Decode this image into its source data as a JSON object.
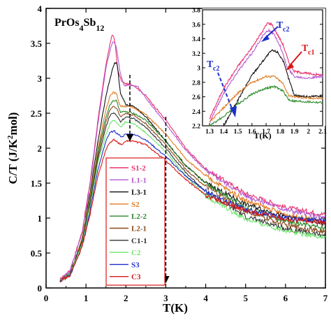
{
  "chart_data": {
    "type": "line",
    "title": "PrOs4Sb12",
    "xlabel": "T(K)",
    "ylabel": "C/T (J/K2mol)",
    "xlim": [
      0,
      7
    ],
    "ylim": [
      0,
      4
    ],
    "xticks": [
      "0",
      "1",
      "2",
      "3",
      "4",
      "5",
      "6",
      "7"
    ],
    "yticks": [
      "0",
      "0.5",
      "1",
      "1.5",
      "2",
      "2.5",
      "3",
      "3.5",
      "4"
    ],
    "legend_position": "inside lower middle",
    "series": [
      {
        "name": "S1-2",
        "color": "#e8306a",
        "x": [
          0.35,
          0.6,
          0.9,
          1.1,
          1.3,
          1.5,
          1.65,
          1.68,
          1.73,
          1.8,
          1.9,
          2.0,
          2.2,
          2.5,
          3.0,
          3.5,
          4.0,
          5.0,
          6.0,
          7.0
        ],
        "y": [
          0.12,
          0.25,
          0.8,
          1.5,
          2.4,
          3.2,
          3.62,
          3.62,
          3.5,
          3.1,
          2.95,
          2.92,
          2.9,
          2.75,
          2.4,
          2.0,
          1.7,
          1.35,
          1.15,
          1.05
        ]
      },
      {
        "name": "L1-1",
        "color": "#b45ad2",
        "x": [
          0.35,
          0.6,
          0.9,
          1.1,
          1.3,
          1.5,
          1.65,
          1.7,
          1.76,
          1.85,
          1.95,
          2.1,
          2.3,
          2.5,
          3.0,
          3.5,
          4.0,
          5.0,
          6.0,
          7.0
        ],
        "y": [
          0.12,
          0.25,
          0.78,
          1.45,
          2.35,
          3.15,
          3.5,
          3.52,
          3.45,
          3.1,
          2.9,
          2.9,
          2.88,
          2.72,
          2.35,
          1.97,
          1.68,
          1.32,
          1.12,
          1.0
        ]
      },
      {
        "name": "L3-1",
        "color": "#111111",
        "x": [
          0.35,
          0.6,
          0.9,
          1.1,
          1.3,
          1.5,
          1.65,
          1.72,
          1.78,
          1.86,
          2.0,
          2.2,
          2.5,
          3.0,
          3.5,
          4.0,
          5.0,
          6.0,
          7.0
        ],
        "y": [
          0.1,
          0.2,
          0.7,
          1.35,
          2.1,
          2.75,
          3.1,
          3.22,
          3.22,
          2.8,
          2.62,
          2.6,
          2.45,
          2.1,
          1.75,
          1.5,
          1.2,
          1.02,
          0.92
        ]
      },
      {
        "name": "S2",
        "color": "#e07a22",
        "x": [
          0.35,
          0.6,
          0.9,
          1.1,
          1.3,
          1.5,
          1.6,
          1.68,
          1.76,
          1.86,
          2.0,
          2.2,
          2.5,
          3.0,
          3.5,
          4.0,
          5.0,
          6.0,
          7.0
        ],
        "y": [
          0.1,
          0.2,
          0.7,
          1.3,
          2.0,
          2.55,
          2.75,
          2.8,
          2.78,
          2.6,
          2.6,
          2.58,
          2.48,
          2.2,
          1.85,
          1.6,
          1.25,
          1.05,
          0.95
        ]
      },
      {
        "name": "L2-2",
        "color": "#2a8a2a",
        "x": [
          0.35,
          0.6,
          0.9,
          1.1,
          1.3,
          1.5,
          1.6,
          1.68,
          1.76,
          1.86,
          2.0,
          2.2,
          2.5,
          3.0,
          3.5,
          4.0,
          5.0,
          6.0,
          7.0
        ],
        "y": [
          0.1,
          0.2,
          0.68,
          1.25,
          1.95,
          2.45,
          2.62,
          2.68,
          2.68,
          2.52,
          2.52,
          2.5,
          2.4,
          2.1,
          1.75,
          1.5,
          1.15,
          0.95,
          0.85
        ]
      },
      {
        "name": "L2-1",
        "color": "#8b4a1c",
        "x": [
          0.35,
          0.6,
          0.9,
          1.1,
          1.3,
          1.5,
          1.6,
          1.68,
          1.76,
          1.86,
          2.0,
          2.2,
          2.5,
          3.0,
          3.5,
          4.0,
          5.0,
          6.0,
          7.0
        ],
        "y": [
          0.1,
          0.2,
          0.66,
          1.22,
          1.9,
          2.38,
          2.55,
          2.6,
          2.58,
          2.45,
          2.5,
          2.47,
          2.35,
          2.05,
          1.7,
          1.45,
          1.1,
          0.9,
          0.8
        ]
      },
      {
        "name": "C1-1",
        "color": "#333333",
        "x": [
          0.35,
          0.6,
          0.9,
          1.1,
          1.3,
          1.5,
          1.6,
          1.68,
          1.76,
          1.86,
          2.0,
          2.2,
          2.5,
          3.0,
          3.5,
          4.0,
          5.0,
          6.0,
          7.0
        ],
        "y": [
          0.1,
          0.2,
          0.65,
          1.2,
          1.85,
          2.3,
          2.47,
          2.5,
          2.48,
          2.38,
          2.45,
          2.42,
          2.3,
          2.0,
          1.65,
          1.38,
          1.02,
          0.85,
          0.75
        ]
      },
      {
        "name": "C2",
        "color": "#6ee56e",
        "x": [
          0.35,
          0.6,
          0.9,
          1.1,
          1.3,
          1.5,
          1.6,
          1.68,
          1.76,
          1.86,
          2.0,
          2.2,
          2.5,
          3.0,
          3.5,
          4.0,
          5.0,
          6.0,
          7.0
        ],
        "y": [
          0.1,
          0.2,
          0.63,
          1.15,
          1.8,
          2.2,
          2.35,
          2.4,
          2.38,
          2.3,
          2.38,
          2.35,
          2.22,
          1.95,
          1.6,
          1.32,
          0.98,
          0.82,
          0.72
        ]
      },
      {
        "name": "S3",
        "color": "#1c2fc8",
        "x": [
          0.35,
          0.6,
          0.9,
          1.1,
          1.3,
          1.5,
          1.6,
          1.7,
          1.8,
          1.9,
          2.0,
          2.2,
          2.5,
          3.0,
          3.5,
          4.0,
          5.0,
          6.0,
          7.0
        ],
        "y": [
          0.1,
          0.18,
          0.6,
          1.1,
          1.7,
          2.1,
          2.22,
          2.25,
          2.2,
          2.16,
          2.2,
          2.2,
          2.12,
          1.88,
          1.6,
          1.38,
          1.12,
          1.0,
          0.96
        ]
      },
      {
        "name": "C3",
        "color": "#d81818",
        "x": [
          0.35,
          0.6,
          0.9,
          1.1,
          1.3,
          1.5,
          1.6,
          1.7,
          1.8,
          1.9,
          2.0,
          2.2,
          2.5,
          3.0,
          3.5,
          4.0,
          5.0,
          6.0,
          7.0
        ],
        "y": [
          0.1,
          0.18,
          0.58,
          1.05,
          1.6,
          1.98,
          2.08,
          2.12,
          2.08,
          2.05,
          2.1,
          2.1,
          2.05,
          1.82,
          1.55,
          1.33,
          1.1,
          0.98,
          0.93
        ]
      }
    ],
    "annotations": {
      "arrow_small": {
        "x": 2.1,
        "y_from": 3.05,
        "y_to": 2.15
      },
      "arrow_long": {
        "x": 3.0,
        "y_from": 2.45,
        "y_to": 0.12
      }
    },
    "inset": {
      "xlabel": "T(K)",
      "xlim": [
        1.25,
        2.1
      ],
      "ylim": [
        2.2,
        3.8
      ],
      "xticks": [
        "1.3",
        "1.4",
        "1.5",
        "1.6",
        "1.7",
        "1.8",
        "1.9",
        "2",
        "2.1"
      ],
      "yticks": [
        "2.2",
        "2.4",
        "2.6",
        "2.8",
        "3",
        "3.2",
        "3.4",
        "3.6",
        "3.8"
      ],
      "labels": {
        "tc2_left": "c2",
        "tc2_top": "c2",
        "tc1": "c1"
      },
      "series": [
        {
          "name": "S1-2",
          "color": "#e8306a",
          "x": [
            1.3,
            1.4,
            1.5,
            1.6,
            1.68,
            1.71,
            1.74,
            1.78,
            1.82,
            1.86,
            1.9,
            2.0,
            2.1
          ],
          "y": [
            2.3,
            2.72,
            3.02,
            3.28,
            3.52,
            3.62,
            3.6,
            3.46,
            3.32,
            3.08,
            2.95,
            2.92,
            2.9
          ]
        },
        {
          "name": "L1-1",
          "color": "#b45ad2",
          "x": [
            1.3,
            1.4,
            1.5,
            1.6,
            1.68,
            1.72,
            1.76,
            1.8,
            1.85,
            1.9,
            2.0,
            2.1
          ],
          "y": [
            2.25,
            2.65,
            2.95,
            3.2,
            3.45,
            3.52,
            3.45,
            3.3,
            3.0,
            2.88,
            2.86,
            2.88
          ]
        },
        {
          "name": "L3-1",
          "color": "#111111",
          "x": [
            1.4,
            1.5,
            1.6,
            1.7,
            1.74,
            1.78,
            1.82,
            1.86,
            1.9,
            2.0,
            2.1
          ],
          "y": [
            2.2,
            2.55,
            2.9,
            3.15,
            3.24,
            3.22,
            3.1,
            2.85,
            2.62,
            2.6,
            2.62
          ]
        },
        {
          "name": "S2",
          "color": "#e07a22",
          "x": [
            1.3,
            1.4,
            1.5,
            1.6,
            1.7,
            1.76,
            1.82,
            1.86,
            1.9,
            2.0,
            2.1
          ],
          "y": [
            2.25,
            2.45,
            2.65,
            2.8,
            2.88,
            2.88,
            2.78,
            2.62,
            2.6,
            2.58,
            2.58
          ]
        },
        {
          "name": "L2-2",
          "color": "#2a8a2a",
          "x": [
            1.3,
            1.4,
            1.5,
            1.6,
            1.7,
            1.76,
            1.82,
            1.86,
            1.9,
            2.0,
            2.1
          ],
          "y": [
            2.2,
            2.33,
            2.5,
            2.64,
            2.72,
            2.74,
            2.68,
            2.56,
            2.54,
            2.53,
            2.52
          ]
        }
      ]
    }
  }
}
